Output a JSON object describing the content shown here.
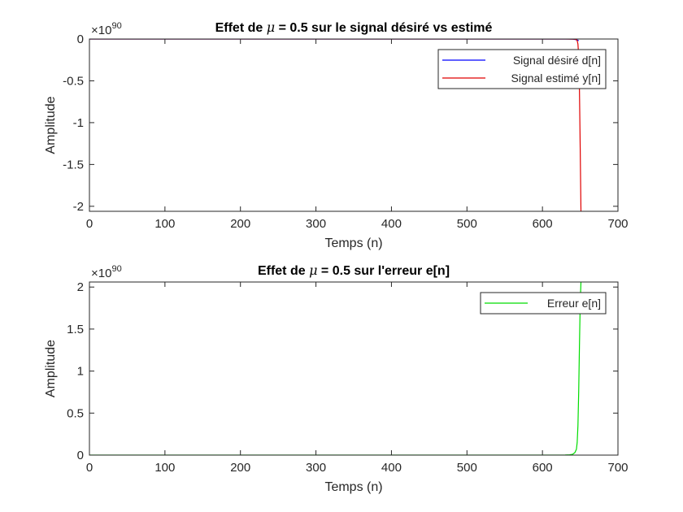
{
  "chart_data": [
    {
      "type": "line",
      "title_parts": [
        "Effet de ",
        "μ",
        " = 0.5 sur le signal désiré vs estimé"
      ],
      "xlabel": "Temps (n)",
      "ylabel": "Amplitude",
      "exponent_base": "×10",
      "exponent_power": "90",
      "xlim": [
        0,
        700
      ],
      "ylim": [
        -2.06,
        0
      ],
      "xticks": [
        0,
        100,
        200,
        300,
        400,
        500,
        600,
        700
      ],
      "yticks": [
        0,
        -0.5,
        -1,
        -1.5,
        -2
      ],
      "ytick_labels": [
        "0",
        "-0.5",
        "-1",
        "-1.5",
        "-2"
      ],
      "legend_position": "top-right",
      "series": [
        {
          "name": "Signal désiré d[n]",
          "color": "#0000ff",
          "x": [
            0,
            620,
            630,
            635,
            640,
            643,
            646,
            648
          ],
          "y": [
            0,
            0,
            0,
            -0.0005,
            -0.002,
            -0.005,
            -0.012,
            -0.02
          ]
        },
        {
          "name": "Signal estimé y[n]",
          "color": "#e00000",
          "x": [
            0,
            620,
            630,
            640,
            643,
            645,
            646,
            647,
            648,
            649,
            650,
            651
          ],
          "y": [
            0,
            0,
            0,
            -0.001,
            -0.003,
            -0.008,
            -0.02,
            -0.06,
            -0.2,
            -0.6,
            -1.3,
            -2.06
          ]
        }
      ]
    },
    {
      "type": "line",
      "title_parts": [
        "Effet de ",
        "μ",
        " = 0.5 sur l'erreur e[n]"
      ],
      "xlabel": "Temps (n)",
      "ylabel": "Amplitude",
      "exponent_base": "×10",
      "exponent_power": "90",
      "xlim": [
        0,
        700
      ],
      "ylim": [
        0,
        2.06
      ],
      "xticks": [
        0,
        100,
        200,
        300,
        400,
        500,
        600,
        700
      ],
      "yticks": [
        0,
        0.5,
        1,
        1.5,
        2
      ],
      "ytick_labels": [
        "0",
        "0.5",
        "1",
        "1.5",
        "2"
      ],
      "legend_position": "top-right",
      "series": [
        {
          "name": "Erreur e[n]",
          "color": "#00dd00",
          "x": [
            0,
            620,
            630,
            636,
            640,
            643,
            645,
            646,
            647,
            648,
            649,
            650,
            651
          ],
          "y": [
            0,
            0,
            0.001,
            0.004,
            0.01,
            0.03,
            0.07,
            0.15,
            0.35,
            0.75,
            1.3,
            1.8,
            2.06
          ]
        }
      ]
    }
  ]
}
